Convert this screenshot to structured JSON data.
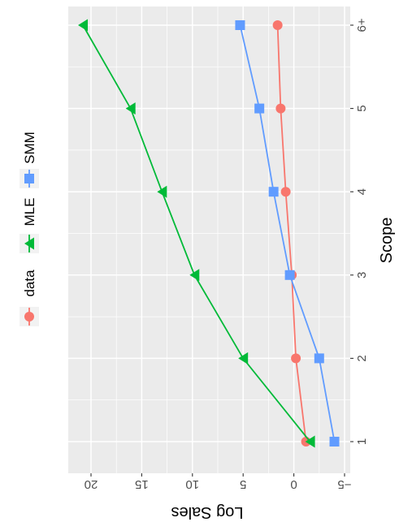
{
  "chart_data": {
    "type": "line",
    "orientation": "rotated-90",
    "xlabel": "Scope",
    "ylabel": "Log Sales",
    "categories": [
      "1",
      "2",
      "3",
      "4",
      "5",
      "6+"
    ],
    "ylim": [
      -5,
      22.4
    ],
    "yticks": [
      -5,
      0,
      5,
      10,
      15,
      20
    ],
    "ytick_labels": [
      "−5",
      "0",
      "5",
      "10",
      "15",
      "20"
    ],
    "grid": true,
    "background": "#ebebeb",
    "legend_position": "left",
    "series": [
      {
        "name": "data",
        "values": [
          -1.2,
          -0.2,
          0.2,
          0.8,
          1.3,
          1.6
        ],
        "color": "#f8766d",
        "marker": "circle"
      },
      {
        "name": "MLE",
        "values": [
          -1.6,
          5.0,
          9.8,
          13.0,
          16.1,
          20.8
        ],
        "color": "#00ba38",
        "marker": "triangle"
      },
      {
        "name": "SMM",
        "values": [
          -4.0,
          -2.5,
          0.4,
          2.0,
          3.4,
          5.3
        ],
        "color": "#619cff",
        "marker": "square"
      }
    ]
  }
}
